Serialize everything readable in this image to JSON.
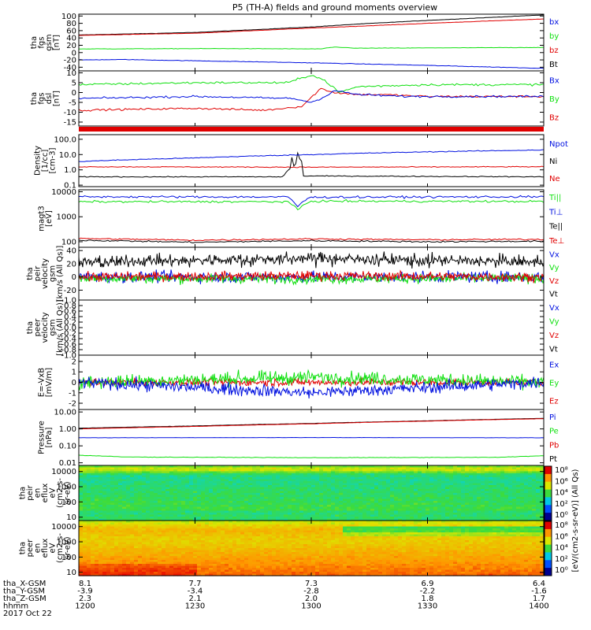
{
  "title": "P5 (TH-A) fields and ground moments overview",
  "colors": {
    "black": "#000000",
    "red": "#e00000",
    "green": "#10e010",
    "blue": "#0010e0",
    "background": "#ffffff"
  },
  "chart_data": [
    {
      "id": "fgs-gsm",
      "type": "line",
      "axis_label": [
        "tha",
        "fgs",
        "gsm",
        "[nT]"
      ],
      "ylim": [
        -50,
        105
      ],
      "y_ticks": [
        100,
        80,
        60,
        40,
        20,
        0,
        -20,
        -40
      ],
      "y_tick_labels": [
        "100",
        "80",
        "60",
        "40",
        "20",
        "0",
        "-20",
        "-40"
      ],
      "series": [
        {
          "name": "Bt",
          "color": "#000000",
          "x": [
            0,
            0.25,
            0.5,
            0.6,
            0.75,
            1.0
          ],
          "y": [
            48,
            55,
            70,
            78,
            88,
            103
          ]
        },
        {
          "name": "bz",
          "color": "#e00000",
          "x": [
            0,
            0.25,
            0.5,
            0.6,
            0.75,
            1.0
          ],
          "y": [
            47,
            53,
            67,
            72,
            80,
            92
          ]
        },
        {
          "name": "by",
          "color": "#10e010",
          "x": [
            0,
            0.3,
            0.52,
            0.55,
            0.6,
            1.0
          ],
          "y": [
            10,
            11,
            10,
            15,
            12,
            14
          ]
        },
        {
          "name": "bx",
          "color": "#0010e0",
          "x": [
            0,
            0.1,
            0.5,
            0.75,
            1.0
          ],
          "y": [
            -20,
            -19,
            -28,
            -35,
            -43
          ]
        }
      ]
    },
    {
      "id": "fgs-dsl",
      "type": "line",
      "axis_label": [
        "tha",
        "fgs",
        "dsl",
        "[nT]"
      ],
      "ylim": [
        -17,
        11
      ],
      "y_ticks": [
        10,
        5,
        0,
        -5,
        -10,
        -15
      ],
      "y_tick_labels": [
        "10",
        "5",
        "0",
        "-5",
        "-10",
        "-15"
      ],
      "series": [
        {
          "name": "Bz",
          "color": "#e00000",
          "x": [
            0,
            0.25,
            0.4,
            0.48,
            0.52,
            0.55,
            0.6,
            0.65,
            0.75,
            1.0
          ],
          "y": [
            -9,
            -8,
            -9,
            -7,
            2,
            0,
            -1,
            -1,
            -2,
            -2
          ]
        },
        {
          "name": "By",
          "color": "#10e010",
          "x": [
            0,
            0.25,
            0.45,
            0.5,
            0.53,
            0.56,
            0.6,
            0.75,
            1.0
          ],
          "y": [
            4,
            5,
            5,
            9,
            6,
            0,
            3,
            4,
            4
          ]
        },
        {
          "name": "Bx",
          "color": "#0010e0",
          "x": [
            0,
            0.25,
            0.46,
            0.5,
            0.53,
            0.55,
            0.6,
            0.7,
            1.0
          ],
          "y": [
            -3,
            -2,
            -3,
            -5,
            -2,
            1,
            -1,
            -2,
            -2
          ]
        }
      ]
    },
    {
      "id": "density",
      "type": "line",
      "y_scale": "log",
      "axis_label": [
        "Density",
        "[1/cc]",
        "[cm-3]"
      ],
      "ylim": [
        0.08,
        200
      ],
      "y_ticks": [
        100,
        10,
        1,
        0.1
      ],
      "y_tick_labels": [
        "100.0",
        "10.0",
        "1.0",
        "0.1"
      ],
      "series": [
        {
          "name": "Ne",
          "color": "#e00000",
          "x": [
            0,
            0.5,
            1.0
          ],
          "y": [
            1.6,
            1.5,
            1.6
          ]
        },
        {
          "name": "Ni",
          "color": "#000000",
          "x": [
            0,
            0.44,
            0.46,
            0.47,
            0.48,
            1.0
          ],
          "y": [
            0.35,
            0.35,
            1.5,
            3.0,
            0.4,
            0.35
          ]
        },
        {
          "name": "Npot",
          "color": "#0010e0",
          "x": [
            0,
            0.25,
            0.5,
            0.75,
            1.0
          ],
          "y": [
            3.5,
            6,
            10,
            15,
            20
          ]
        }
      ]
    },
    {
      "id": "magt3",
      "type": "line",
      "y_scale": "log",
      "axis_label": [
        "magt3",
        "[eV]"
      ],
      "ylim": [
        60,
        12000
      ],
      "y_ticks": [
        10000,
        1000,
        100
      ],
      "y_tick_labels": [
        "10000",
        "1000",
        "100"
      ],
      "series": [
        {
          "name": "Te⊥",
          "color": "#e00000",
          "x": [
            0,
            0.25,
            0.5,
            0.75,
            1.0
          ],
          "y": [
            135,
            115,
            130,
            120,
            125
          ]
        },
        {
          "name": "Te||",
          "color": "#000000",
          "x": [
            0,
            0.25,
            0.5,
            0.75,
            1.0
          ],
          "y": [
            115,
            95,
            110,
            100,
            105
          ]
        },
        {
          "name": "Ti⊥",
          "color": "#0010e0",
          "x": [
            0,
            0.45,
            0.47,
            0.5,
            1.0
          ],
          "y": [
            6300,
            6200,
            2500,
            6100,
            6300
          ]
        },
        {
          "name": "Ti||",
          "color": "#10e010",
          "x": [
            0,
            0.45,
            0.47,
            0.5,
            1.0
          ],
          "y": [
            4000,
            4000,
            1800,
            4200,
            4100
          ]
        }
      ]
    },
    {
      "id": "peir-velocity",
      "type": "line",
      "axis_label": [
        "tha",
        "peir",
        "velocity",
        "gsm",
        "[km/s (All Qs)]"
      ],
      "ylim": [
        -35,
        45
      ],
      "y_ticks": [
        40,
        20,
        0,
        -20
      ],
      "y_tick_labels": [
        "40",
        "20",
        "0",
        "-20"
      ],
      "series": [
        {
          "name": "Vt",
          "color": "#000000",
          "x": [
            0,
            0.5,
            1.0
          ],
          "y": [
            22,
            28,
            22
          ]
        },
        {
          "name": "Vz",
          "color": "#e00000",
          "x": [
            0,
            0.5,
            1.0
          ],
          "y": [
            0,
            2,
            0
          ]
        },
        {
          "name": "Vy",
          "color": "#10e010",
          "x": [
            0,
            0.5,
            1.0
          ],
          "y": [
            -2,
            -3,
            -2
          ]
        },
        {
          "name": "Vx",
          "color": "#0010e0",
          "x": [
            0,
            0.5,
            1.0
          ],
          "y": [
            0,
            0,
            0
          ]
        }
      ]
    },
    {
      "id": "peer-velocity",
      "type": "line",
      "axis_label": [
        "tha",
        "peer",
        "velocity",
        "gsm",
        "[km/s (All Qs)]"
      ],
      "ylim": [
        -1,
        1
      ],
      "y_ticks": [
        1.0,
        0.8,
        0.6,
        0.4,
        0.2,
        0.0,
        -0.2,
        -0.4,
        -0.6,
        -0.8,
        -1.0
      ],
      "y_tick_labels": [
        "1.0",
        "0.8",
        "0.6",
        "0.4",
        "0.2",
        "0.0",
        "-0.2",
        "-0.4",
        "-0.6",
        "-0.8",
        "-1.0"
      ],
      "series": [
        {
          "name": "Vt",
          "color": "#000000"
        },
        {
          "name": "Vz",
          "color": "#e00000"
        },
        {
          "name": "Vy",
          "color": "#10e010"
        },
        {
          "name": "Vx",
          "color": "#0010e0"
        }
      ]
    },
    {
      "id": "efield",
      "type": "line",
      "axis_label": [
        "E=-VxB",
        "[mV/m]"
      ],
      "ylim": [
        -2.6,
        2.6
      ],
      "y_ticks": [
        2,
        1,
        0,
        -1,
        -2
      ],
      "y_tick_labels": [
        "2",
        "1",
        "0",
        "-1",
        "-2"
      ],
      "series": [
        {
          "name": "Ez",
          "color": "#e00000",
          "x": [
            0,
            0.5,
            1.0
          ],
          "y": [
            0,
            0,
            0
          ]
        },
        {
          "name": "Ey",
          "color": "#10e010",
          "x": [
            0,
            0.5,
            1.0
          ],
          "y": [
            0,
            0.5,
            0
          ]
        },
        {
          "name": "Ex",
          "color": "#0010e0",
          "x": [
            0,
            0.5,
            1.0
          ],
          "y": [
            0,
            -1,
            0
          ]
        }
      ]
    },
    {
      "id": "pressure",
      "type": "line",
      "y_scale": "log",
      "axis_label": [
        "Pressure",
        "[nPa]"
      ],
      "ylim": [
        0.007,
        14
      ],
      "y_ticks": [
        10,
        1,
        0.1,
        0.01
      ],
      "y_tick_labels": [
        "10.00",
        "1.00",
        "0.10",
        "0.01"
      ],
      "series": [
        {
          "name": "Pt",
          "color": "#000000",
          "x": [
            0,
            0.25,
            0.5,
            0.75,
            1.0
          ],
          "y": [
            1.1,
            1.5,
            2.1,
            3.0,
            4.2
          ]
        },
        {
          "name": "Pb",
          "color": "#e00000",
          "x": [
            0,
            0.25,
            0.5,
            0.75,
            1.0
          ],
          "y": [
            1.0,
            1.4,
            2.0,
            2.9,
            4.0
          ]
        },
        {
          "name": "Pe",
          "color": "#10e010",
          "x": [
            0,
            0.1,
            0.5,
            0.9,
            1.0
          ],
          "y": [
            0.028,
            0.022,
            0.02,
            0.021,
            0.026
          ]
        },
        {
          "name": "Pi",
          "color": "#0010e0",
          "x": [
            0,
            0.5,
            1.0
          ],
          "y": [
            0.3,
            0.31,
            0.3
          ]
        }
      ]
    },
    {
      "id": "peir-en-eflux",
      "type": "heatmap",
      "y_scale": "log",
      "axis_label": [
        "tha",
        "peir",
        "en",
        "eflux",
        "eV",
        "(cm2-s-",
        "sr-eV)"
      ],
      "ylim": [
        6,
        25000
      ],
      "y_ticks": [
        10000,
        1000,
        100,
        10
      ],
      "y_tick_labels": [
        "10000",
        "1000",
        "100",
        "10"
      ]
    },
    {
      "id": "peer-en-eflux",
      "type": "heatmap",
      "y_scale": "log",
      "axis_label": [
        "tha",
        "peer",
        "en",
        "eflux",
        "eV",
        "(cm2-s-",
        "sr-eV)"
      ],
      "ylim": [
        6,
        25000
      ],
      "y_ticks": [
        10000,
        1000,
        100,
        10
      ],
      "y_tick_labels": [
        "10000",
        "1000",
        "100",
        "10"
      ]
    }
  ],
  "colorbar": {
    "label": "[eV/(cm2-s-sr-eV)] (All Qs)",
    "upper_ticks": [
      "10⁸",
      "10⁶",
      "10⁴",
      "10²",
      "10⁰"
    ],
    "lower_ticks": [
      "10⁸",
      "10⁶",
      "10⁴",
      "10²",
      "10⁰"
    ]
  },
  "x_axis": {
    "labels": [
      "tha_X-GSM",
      "tha_Y-GSM",
      "tha_Z-GSM",
      "hhmm",
      "2017 Oct 22"
    ],
    "rows": [
      [
        "8.1",
        "7.7",
        "7.3",
        "6.9",
        "6.4"
      ],
      [
        "-3.9",
        "-3.4",
        "-2.8",
        "-2.2",
        "-1.6"
      ],
      [
        "2.3",
        "2.1",
        "2.0",
        "1.8",
        "1.7"
      ],
      [
        "1200",
        "1230",
        "1300",
        "1330",
        "1400"
      ]
    ]
  }
}
